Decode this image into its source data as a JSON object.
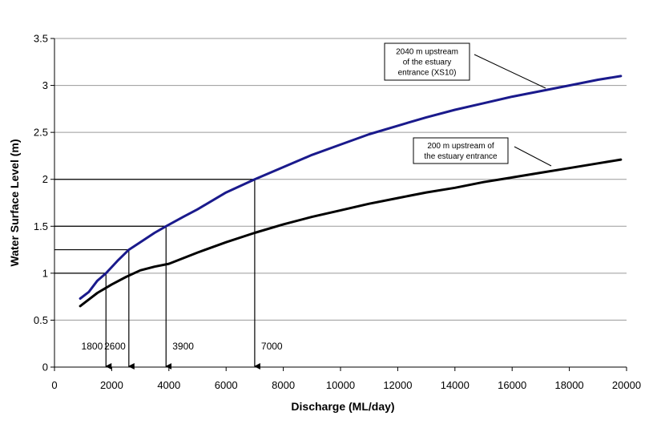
{
  "chart_data": {
    "type": "line",
    "xlabel": "Discharge (ML/day)",
    "ylabel": "Water Surface Level (m)",
    "xlim": [
      0,
      20000
    ],
    "ylim": [
      0,
      3.5
    ],
    "x_ticks": [
      "0",
      "2000",
      "4000",
      "6000",
      "8000",
      "10000",
      "12000",
      "14000",
      "16000",
      "18000",
      "20000"
    ],
    "y_ticks": [
      "0",
      "0.5",
      "1",
      "1.5",
      "2",
      "2.5",
      "3",
      "3.5"
    ],
    "grid": "horizontal",
    "series": [
      {
        "name": "2040 m upstream of the estuary entrance (XS10)",
        "label_lines": [
          "2040 m upstream",
          "of the estuary",
          "entrance (XS10)"
        ],
        "color": "#1a1a8c",
        "x": [
          900,
          1200,
          1500,
          1800,
          2200,
          2600,
          3000,
          3500,
          3900,
          4500,
          5000,
          6000,
          7000,
          8000,
          9000,
          10000,
          11000,
          12000,
          13000,
          14000,
          15000,
          16000,
          17000,
          18000,
          19000,
          19800
        ],
        "y": [
          0.73,
          0.8,
          0.92,
          1.0,
          1.13,
          1.25,
          1.33,
          1.43,
          1.5,
          1.6,
          1.68,
          1.86,
          2.0,
          2.13,
          2.26,
          2.37,
          2.48,
          2.57,
          2.66,
          2.74,
          2.81,
          2.88,
          2.94,
          3.0,
          3.06,
          3.1
        ]
      },
      {
        "name": "200 m upstream of the estuary entrance",
        "label_lines": [
          "200 m upstream  of",
          "the estuary entrance"
        ],
        "color": "#000000",
        "x": [
          900,
          1200,
          1500,
          2000,
          2500,
          3000,
          3500,
          4000,
          5000,
          6000,
          7000,
          8000,
          9000,
          10000,
          11000,
          12000,
          13000,
          14000,
          15000,
          16000,
          17000,
          18000,
          19000,
          19800
        ],
        "y": [
          0.65,
          0.72,
          0.79,
          0.88,
          0.96,
          1.03,
          1.07,
          1.1,
          1.22,
          1.33,
          1.43,
          1.52,
          1.6,
          1.67,
          1.74,
          1.8,
          1.86,
          1.91,
          1.97,
          2.02,
          2.07,
          2.12,
          2.17,
          2.21
        ]
      }
    ],
    "reference_lines": [
      {
        "x": 1800,
        "y": 1.0,
        "label": "1800"
      },
      {
        "x": 2600,
        "y": 1.25,
        "label": "2600"
      },
      {
        "x": 3900,
        "y": 1.5,
        "label": "3900"
      },
      {
        "x": 7000,
        "y": 2.0,
        "label": "7000"
      }
    ]
  }
}
